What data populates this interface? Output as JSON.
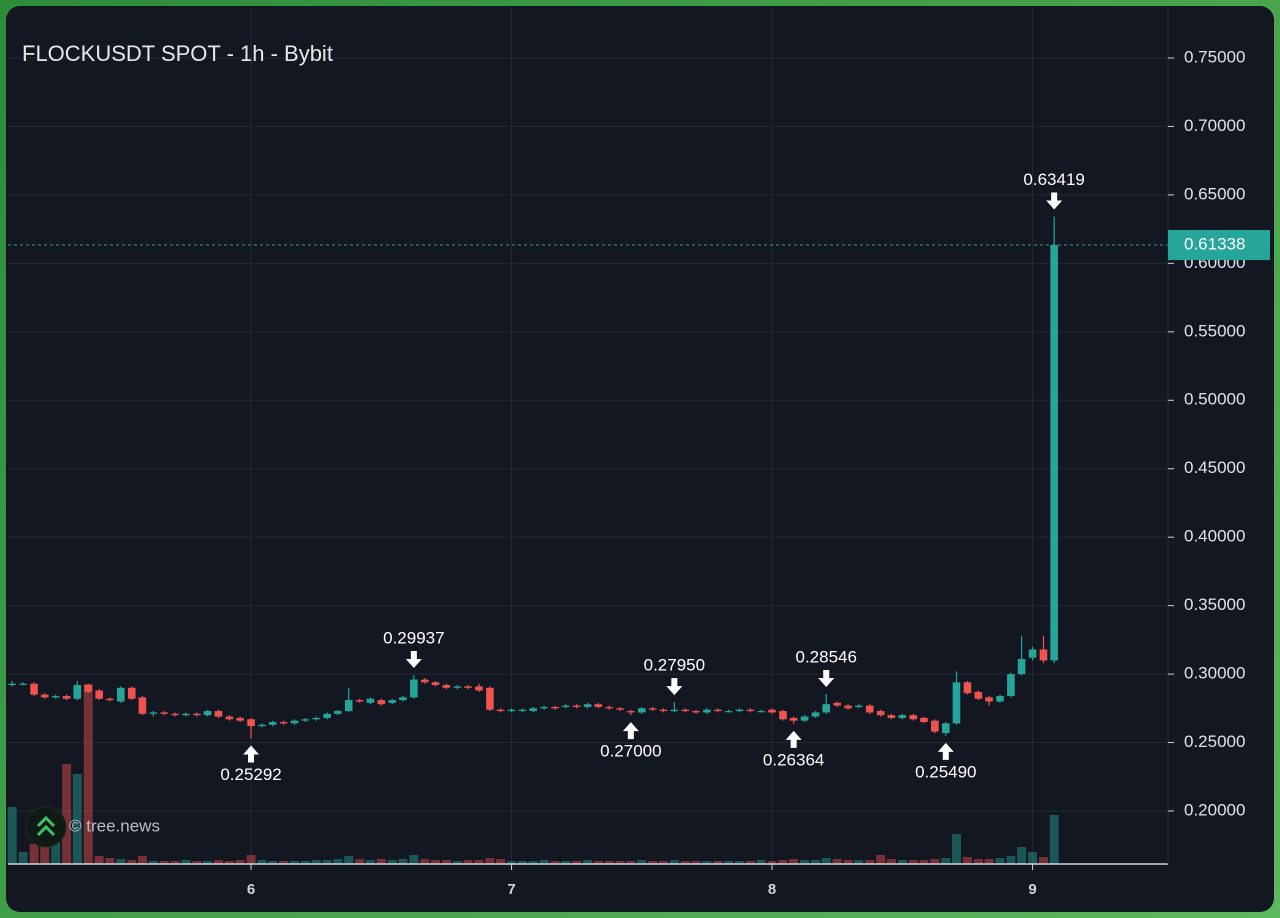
{
  "chart_data": {
    "type": "candlestick",
    "title": "FLOCKUSDT SPOT - 1h - Bybit",
    "watermark": "© tree.news",
    "up_color": "#26a69a",
    "down_color": "#ef5350",
    "grid": true,
    "xlim": [
      5.067,
      9.52
    ],
    "xticks": [
      6,
      7,
      8,
      9
    ],
    "ylim": [
      0.1613,
      0.7865
    ],
    "yticks": [
      {
        "value": 0.2,
        "label": "0.20000"
      },
      {
        "value": 0.25,
        "label": "0.25000"
      },
      {
        "value": 0.3,
        "label": "0.30000"
      },
      {
        "value": 0.35,
        "label": "0.35000"
      },
      {
        "value": 0.4,
        "label": "0.40000"
      },
      {
        "value": 0.45,
        "label": "0.45000"
      },
      {
        "value": 0.5,
        "label": "0.50000"
      },
      {
        "value": 0.55,
        "label": "0.55000"
      },
      {
        "value": 0.6,
        "label": "0.60000"
      },
      {
        "value": 0.65,
        "label": "0.65000"
      },
      {
        "value": 0.7,
        "label": "0.70000"
      },
      {
        "value": 0.75,
        "label": "0.75000"
      }
    ],
    "last_price": {
      "value": 0.61338,
      "label": "0.61338"
    },
    "annotations": [
      {
        "x": 6,
        "value": 0.25292,
        "label": "0.25292",
        "position": "below"
      },
      {
        "x": 6.625,
        "value": 0.29937,
        "label": "0.29937",
        "position": "above"
      },
      {
        "x": 7.458,
        "value": 0.27,
        "label": "0.27000",
        "position": "below"
      },
      {
        "x": 7.625,
        "value": 0.2795,
        "label": "0.27950",
        "position": "above"
      },
      {
        "x": 8.083,
        "value": 0.26364,
        "label": "0.26364",
        "position": "below"
      },
      {
        "x": 8.208,
        "value": 0.28546,
        "label": "0.28546",
        "position": "above"
      },
      {
        "x": 8.667,
        "value": 0.2549,
        "label": "0.25490",
        "position": "below"
      },
      {
        "x": 9.083,
        "value": 0.63419,
        "label": "0.63419",
        "position": "above"
      }
    ],
    "x": [
      5.083,
      5.125,
      5.167,
      5.208,
      5.25,
      5.292,
      5.333,
      5.375,
      5.417,
      5.458,
      5.5,
      5.542,
      5.583,
      5.625,
      5.667,
      5.708,
      5.75,
      5.792,
      5.833,
      5.875,
      5.917,
      5.958,
      6,
      6.042,
      6.083,
      6.125,
      6.167,
      6.208,
      6.25,
      6.292,
      6.333,
      6.375,
      6.417,
      6.458,
      6.5,
      6.542,
      6.583,
      6.625,
      6.667,
      6.708,
      6.75,
      6.792,
      6.833,
      6.875,
      6.917,
      6.958,
      7,
      7.042,
      7.083,
      7.125,
      7.167,
      7.208,
      7.25,
      7.292,
      7.333,
      7.375,
      7.417,
      7.458,
      7.5,
      7.542,
      7.583,
      7.625,
      7.667,
      7.708,
      7.75,
      7.792,
      7.833,
      7.875,
      7.917,
      7.958,
      8,
      8.042,
      8.083,
      8.125,
      8.167,
      8.208,
      8.25,
      8.292,
      8.333,
      8.375,
      8.417,
      8.458,
      8.5,
      8.542,
      8.583,
      8.625,
      8.667,
      8.708,
      8.75,
      8.792,
      8.833,
      8.875,
      8.917,
      8.958,
      9,
      9.042,
      9.083
    ],
    "open": [
      0.292,
      0.293,
      0.293,
      0.285,
      0.283,
      0.284,
      0.282,
      0.292,
      0.288,
      0.282,
      0.28,
      0.29,
      0.283,
      0.271,
      0.272,
      0.271,
      0.27,
      0.271,
      0.27,
      0.273,
      0.269,
      0.268,
      0.267,
      0.262,
      0.263,
      0.265,
      0.264,
      0.266,
      0.267,
      0.268,
      0.271,
      0.273,
      0.281,
      0.279,
      0.281,
      0.279,
      0.281,
      0.283,
      0.296,
      0.294,
      0.292,
      0.29,
      0.291,
      0.291,
      0.29,
      0.274,
      0.273,
      0.273,
      0.273,
      0.275,
      0.276,
      0.276,
      0.277,
      0.276,
      0.278,
      0.276,
      0.275,
      0.273,
      0.272,
      0.275,
      0.274,
      0.273,
      0.274,
      0.273,
      0.272,
      0.274,
      0.273,
      0.273,
      0.274,
      0.273,
      0.274,
      0.273,
      0.268,
      0.266,
      0.269,
      0.272,
      0.279,
      0.277,
      0.276,
      0.277,
      0.273,
      0.27,
      0.268,
      0.27,
      0.268,
      0.266,
      0.257,
      0.264,
      0.294,
      0.287,
      0.283,
      0.28,
      0.284,
      0.3,
      0.312,
      0.318,
      0.31
    ],
    "high": [
      0.295,
      0.294,
      0.294,
      0.286,
      0.285,
      0.285,
      0.295,
      0.293,
      0.289,
      0.283,
      0.291,
      0.291,
      0.284,
      0.273,
      0.273,
      0.272,
      0.272,
      0.272,
      0.274,
      0.274,
      0.27,
      0.269,
      0.268,
      0.264,
      0.266,
      0.266,
      0.267,
      0.268,
      0.269,
      0.272,
      0.274,
      0.29,
      0.282,
      0.283,
      0.282,
      0.282,
      0.284,
      0.29937,
      0.297,
      0.295,
      0.293,
      0.292,
      0.292,
      0.293,
      0.291,
      0.275,
      0.275,
      0.275,
      0.276,
      0.277,
      0.277,
      0.278,
      0.278,
      0.279,
      0.279,
      0.277,
      0.276,
      0.274,
      0.276,
      0.276,
      0.275,
      0.2795,
      0.275,
      0.274,
      0.275,
      0.275,
      0.274,
      0.275,
      0.275,
      0.274,
      0.275,
      0.274,
      0.269,
      0.27,
      0.273,
      0.28546,
      0.28,
      0.278,
      0.278,
      0.278,
      0.274,
      0.271,
      0.271,
      0.271,
      0.269,
      0.267,
      0.265,
      0.302,
      0.295,
      0.288,
      0.284,
      0.285,
      0.301,
      0.328,
      0.32,
      0.328,
      0.63419
    ],
    "low": [
      0.291,
      0.292,
      0.284,
      0.282,
      0.282,
      0.281,
      0.281,
      0.286,
      0.281,
      0.28,
      0.279,
      0.281,
      0.27,
      0.269,
      0.27,
      0.269,
      0.269,
      0.269,
      0.269,
      0.268,
      0.266,
      0.265,
      0.25292,
      0.261,
      0.262,
      0.263,
      0.263,
      0.265,
      0.266,
      0.267,
      0.27,
      0.272,
      0.279,
      0.278,
      0.277,
      0.278,
      0.28,
      0.282,
      0.293,
      0.291,
      0.289,
      0.289,
      0.289,
      0.287,
      0.273,
      0.272,
      0.272,
      0.272,
      0.272,
      0.274,
      0.274,
      0.275,
      0.275,
      0.275,
      0.275,
      0.274,
      0.273,
      0.27,
      0.271,
      0.273,
      0.272,
      0.272,
      0.272,
      0.271,
      0.271,
      0.272,
      0.272,
      0.272,
      0.272,
      0.272,
      0.271,
      0.266,
      0.26364,
      0.265,
      0.268,
      0.271,
      0.276,
      0.274,
      0.275,
      0.271,
      0.269,
      0.267,
      0.267,
      0.266,
      0.264,
      0.257,
      0.2549,
      0.263,
      0.285,
      0.281,
      0.277,
      0.279,
      0.283,
      0.299,
      0.31,
      0.308,
      0.308
    ],
    "close": [
      0.293,
      0.293,
      0.285,
      0.283,
      0.284,
      0.282,
      0.292,
      0.287,
      0.282,
      0.281,
      0.29,
      0.282,
      0.271,
      0.272,
      0.271,
      0.27,
      0.271,
      0.27,
      0.273,
      0.269,
      0.267,
      0.266,
      0.262,
      0.263,
      0.265,
      0.264,
      0.266,
      0.267,
      0.268,
      0.271,
      0.273,
      0.281,
      0.28,
      0.282,
      0.278,
      0.281,
      0.283,
      0.296,
      0.294,
      0.292,
      0.29,
      0.291,
      0.29,
      0.288,
      0.274,
      0.273,
      0.274,
      0.274,
      0.275,
      0.276,
      0.275,
      0.277,
      0.276,
      0.278,
      0.276,
      0.275,
      0.274,
      0.272,
      0.275,
      0.274,
      0.273,
      0.274,
      0.273,
      0.272,
      0.274,
      0.273,
      0.273,
      0.274,
      0.273,
      0.273,
      0.272,
      0.267,
      0.266,
      0.269,
      0.272,
      0.278,
      0.277,
      0.275,
      0.277,
      0.272,
      0.27,
      0.268,
      0.27,
      0.267,
      0.265,
      0.258,
      0.264,
      0.294,
      0.286,
      0.282,
      0.28,
      0.284,
      0.3,
      0.311,
      0.318,
      0.31,
      0.61338
    ],
    "volume": [
      57,
      12,
      20,
      40,
      30,
      100,
      90,
      180,
      8,
      6,
      5,
      4,
      8,
      3,
      3,
      3,
      4,
      3,
      3,
      4,
      3,
      4,
      9,
      4,
      3,
      3,
      3,
      3,
      4,
      4,
      5,
      8,
      5,
      4,
      5,
      4,
      5,
      9,
      5,
      4,
      4,
      3,
      4,
      4,
      6,
      5,
      3,
      3,
      3,
      4,
      3,
      3,
      3,
      4,
      3,
      3,
      3,
      3,
      4,
      3,
      3,
      4,
      3,
      3,
      3,
      3,
      3,
      3,
      3,
      4,
      3,
      4,
      5,
      4,
      4,
      6,
      5,
      4,
      4,
      4,
      9,
      5,
      4,
      4,
      4,
      5,
      6,
      30,
      7,
      5,
      5,
      6,
      8,
      17,
      12,
      7,
      49
    ]
  }
}
